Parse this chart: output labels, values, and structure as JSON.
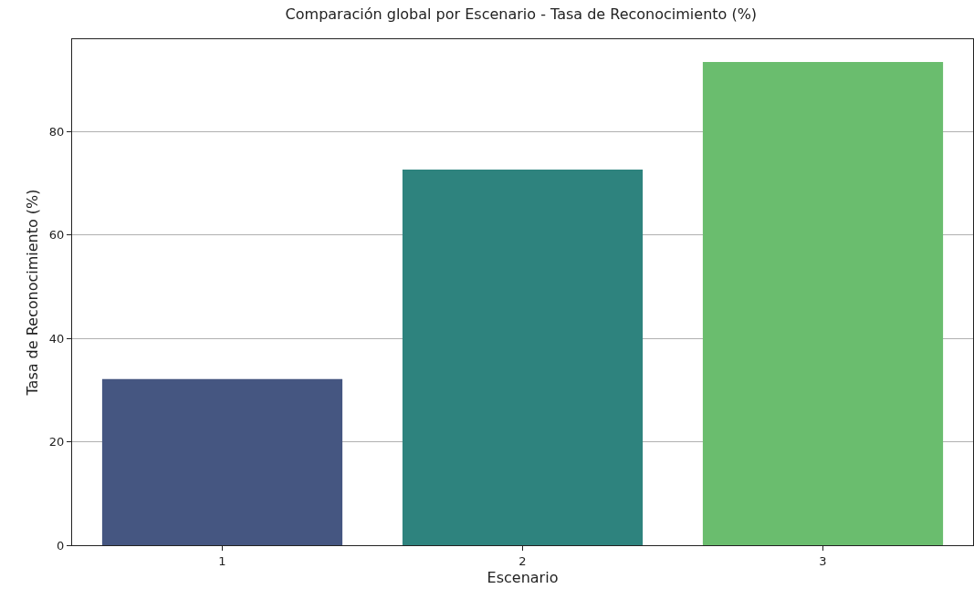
{
  "chart_data": {
    "type": "bar",
    "title": "Comparación global por Escenario - Tasa de Reconocimiento (%)",
    "xlabel": "Escenario",
    "ylabel": "Tasa de Reconocimiento (%)",
    "categories": [
      "1",
      "2",
      "3"
    ],
    "values": [
      32.1,
      72.6,
      93.4
    ],
    "colors": [
      "#455681",
      "#2e837e",
      "#6abd6e"
    ],
    "ylim": [
      0,
      97.8
    ],
    "yticks": [
      0,
      20,
      40,
      60,
      80
    ],
    "grid": "y"
  }
}
